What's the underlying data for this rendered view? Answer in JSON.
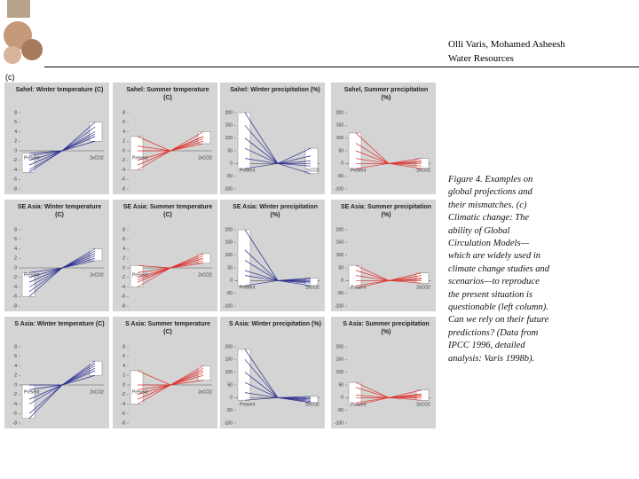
{
  "header": {
    "authors": "Olli Varis, Mohamed Asheesh",
    "subtitle": "Water Resources"
  },
  "label": "(c)",
  "caption": "Figure 4. Examples on global projections and their mismatches. (c) Climatic change: The ability of Global Circulation Models—which are widely used in climate change studies and scenarios—to reproduce the present situation is questionable (left column). Can we rely on their future predictions? (Data from IPCC 1996, detailed analysis: Varis 1998b).",
  "chart_data": [
    {
      "type": "line",
      "title": "Sahel: Winter temperature (C)",
      "categories": [
        "Present",
        null,
        "2xCO2"
      ],
      "ylim": [
        -8,
        8
      ],
      "yticks": [
        -8,
        -6,
        -4,
        -2,
        0,
        2,
        4,
        6,
        8
      ],
      "series": [
        {
          "color": "#2b2f8f",
          "values": [
            -1,
            0,
            6
          ]
        },
        {
          "color": "#2b2f8f",
          "values": [
            -2,
            0,
            3
          ]
        },
        {
          "color": "#2b2f8f",
          "values": [
            -3,
            0,
            4
          ]
        },
        {
          "color": "#2b2f8f",
          "values": [
            -4,
            0,
            2
          ]
        },
        {
          "color": "#2b2f8f",
          "values": [
            -0.5,
            0,
            5
          ]
        },
        {
          "color": "#2b2f8f",
          "values": [
            -4.5,
            0,
            3.5
          ]
        }
      ]
    },
    {
      "type": "line",
      "title": "Sahel: Summer temperature (C)",
      "categories": [
        "Present",
        null,
        "2xCO2"
      ],
      "ylim": [
        -8,
        8
      ],
      "yticks": [
        -8,
        -6,
        -4,
        -2,
        0,
        2,
        4,
        6,
        8
      ],
      "series": [
        {
          "color": "#e0302c",
          "values": [
            -2,
            0,
            4
          ]
        },
        {
          "color": "#e0302c",
          "values": [
            -4,
            0,
            2
          ]
        },
        {
          "color": "#e0302c",
          "values": [
            1,
            0,
            3
          ]
        },
        {
          "color": "#e0302c",
          "values": [
            3,
            0,
            1.5
          ]
        },
        {
          "color": "#e0302c",
          "values": [
            -3,
            0,
            3
          ]
        },
        {
          "color": "#e0302c",
          "values": [
            0,
            0,
            2.5
          ]
        }
      ]
    },
    {
      "type": "line",
      "title": "Sahel: Winter precipitation (%)",
      "categories": [
        "Present",
        null,
        "2xCO2"
      ],
      "ylim": [
        -100,
        200
      ],
      "yticks": [
        -100,
        -50,
        0,
        50,
        100,
        150,
        200
      ],
      "series": [
        {
          "color": "#2b2f8f",
          "values": [
            200,
            0,
            60
          ]
        },
        {
          "color": "#2b2f8f",
          "values": [
            150,
            0,
            30
          ]
        },
        {
          "color": "#2b2f8f",
          "values": [
            100,
            0,
            10
          ]
        },
        {
          "color": "#2b2f8f",
          "values": [
            60,
            0,
            -10
          ]
        },
        {
          "color": "#2b2f8f",
          "values": [
            20,
            0,
            -40
          ]
        },
        {
          "color": "#2b2f8f",
          "values": [
            -20,
            0,
            0
          ]
        }
      ]
    },
    {
      "type": "line",
      "title": "Sahel, Summer precipitation (%)",
      "categories": [
        "Present",
        null,
        "2xCO2"
      ],
      "ylim": [
        -100,
        200
      ],
      "yticks": [
        -100,
        -50,
        0,
        50,
        100,
        150,
        200
      ],
      "series": [
        {
          "color": "#e0302c",
          "values": [
            120,
            0,
            20
          ]
        },
        {
          "color": "#e0302c",
          "values": [
            80,
            0,
            10
          ]
        },
        {
          "color": "#e0302c",
          "values": [
            50,
            0,
            0
          ]
        },
        {
          "color": "#e0302c",
          "values": [
            20,
            0,
            -10
          ]
        },
        {
          "color": "#e0302c",
          "values": [
            0,
            0,
            -20
          ]
        },
        {
          "color": "#e0302c",
          "values": [
            -20,
            0,
            5
          ]
        }
      ]
    },
    {
      "type": "line",
      "title": "SE Asia: Winter temperature (C)",
      "categories": [
        "Present",
        null,
        "2xCO2"
      ],
      "ylim": [
        -8,
        8
      ],
      "yticks": [
        -8,
        -6,
        -4,
        -2,
        0,
        2,
        4,
        6,
        8
      ],
      "series": [
        {
          "color": "#2b2f8f",
          "values": [
            -2,
            0,
            4
          ]
        },
        {
          "color": "#2b2f8f",
          "values": [
            -4,
            0,
            2
          ]
        },
        {
          "color": "#2b2f8f",
          "values": [
            -6,
            0,
            3
          ]
        },
        {
          "color": "#2b2f8f",
          "values": [
            -1,
            0,
            2.5
          ]
        },
        {
          "color": "#2b2f8f",
          "values": [
            -3,
            0,
            3.5
          ]
        },
        {
          "color": "#2b2f8f",
          "values": [
            -5,
            0,
            1.5
          ]
        }
      ]
    },
    {
      "type": "line",
      "title": "SE Asia: Summer temperature (C)",
      "categories": [
        "Present",
        null,
        "2xCO2"
      ],
      "ylim": [
        -8,
        8
      ],
      "yticks": [
        -8,
        -6,
        -4,
        -2,
        0,
        2,
        4,
        6,
        8
      ],
      "series": [
        {
          "color": "#e0302c",
          "values": [
            -1,
            0,
            3
          ]
        },
        {
          "color": "#e0302c",
          "values": [
            -2,
            0,
            2
          ]
        },
        {
          "color": "#e0302c",
          "values": [
            -3,
            0,
            1.5
          ]
        },
        {
          "color": "#e0302c",
          "values": [
            -4,
            0,
            2.5
          ]
        },
        {
          "color": "#e0302c",
          "values": [
            0.5,
            0,
            1
          ]
        },
        {
          "color": "#e0302c",
          "values": [
            -2.5,
            0,
            2
          ]
        }
      ]
    },
    {
      "type": "line",
      "title": "SE Asia: Winter precipitation (%)",
      "categories": [
        "Present",
        null,
        "2xCO2"
      ],
      "ylim": [
        -100,
        200
      ],
      "yticks": [
        -100,
        -50,
        0,
        50,
        100,
        150,
        200
      ],
      "series": [
        {
          "color": "#2b2f8f",
          "values": [
            200,
            0,
            10
          ]
        },
        {
          "color": "#2b2f8f",
          "values": [
            120,
            0,
            -10
          ]
        },
        {
          "color": "#2b2f8f",
          "values": [
            80,
            0,
            0
          ]
        },
        {
          "color": "#2b2f8f",
          "values": [
            40,
            0,
            -20
          ]
        },
        {
          "color": "#2b2f8f",
          "values": [
            20,
            0,
            5
          ]
        },
        {
          "color": "#2b2f8f",
          "values": [
            -20,
            0,
            -5
          ]
        }
      ]
    },
    {
      "type": "line",
      "title": "SE Asia: Summer precipitation (%)",
      "categories": [
        "Present",
        null,
        "2xCO2"
      ],
      "ylim": [
        -100,
        200
      ],
      "yticks": [
        -100,
        -50,
        0,
        50,
        100,
        150,
        200
      ],
      "series": [
        {
          "color": "#e0302c",
          "values": [
            60,
            0,
            30
          ]
        },
        {
          "color": "#e0302c",
          "values": [
            40,
            0,
            10
          ]
        },
        {
          "color": "#e0302c",
          "values": [
            20,
            0,
            0
          ]
        },
        {
          "color": "#e0302c",
          "values": [
            0,
            0,
            -10
          ]
        },
        {
          "color": "#e0302c",
          "values": [
            -20,
            0,
            20
          ]
        },
        {
          "color": "#e0302c",
          "values": [
            -30,
            0,
            5
          ]
        }
      ]
    },
    {
      "type": "line",
      "title": "S Asia: Winter temperature (C)",
      "categories": [
        "Present",
        null,
        "2xCO2"
      ],
      "ylim": [
        -8,
        8
      ],
      "yticks": [
        -8,
        -6,
        -4,
        -2,
        0,
        2,
        4,
        6,
        8
      ],
      "series": [
        {
          "color": "#2b2f8f",
          "values": [
            -1,
            0,
            5
          ]
        },
        {
          "color": "#2b2f8f",
          "values": [
            -3,
            0,
            3
          ]
        },
        {
          "color": "#2b2f8f",
          "values": [
            -4,
            0,
            4
          ]
        },
        {
          "color": "#2b2f8f",
          "values": [
            -6,
            0,
            2
          ]
        },
        {
          "color": "#2b2f8f",
          "values": [
            -7,
            0,
            3.5
          ]
        },
        {
          "color": "#2b2f8f",
          "values": [
            0,
            0,
            4.5
          ]
        }
      ]
    },
    {
      "type": "line",
      "title": "S Asia: Summer temperature (C)",
      "categories": [
        "Present",
        null,
        "2xCO2"
      ],
      "ylim": [
        -8,
        8
      ],
      "yticks": [
        -8,
        -6,
        -4,
        -2,
        0,
        2,
        4,
        6,
        8
      ],
      "series": [
        {
          "color": "#e0302c",
          "values": [
            3,
            0,
            4
          ]
        },
        {
          "color": "#e0302c",
          "values": [
            -1,
            0,
            2
          ]
        },
        {
          "color": "#e0302c",
          "values": [
            -2,
            0,
            3
          ]
        },
        {
          "color": "#e0302c",
          "values": [
            -4,
            0,
            1
          ]
        },
        {
          "color": "#e0302c",
          "values": [
            0,
            0,
            2.5
          ]
        },
        {
          "color": "#e0302c",
          "values": [
            -3,
            0,
            3.5
          ]
        }
      ]
    },
    {
      "type": "line",
      "title": "S Asia: Winter precipitation (%)",
      "categories": [
        "Present",
        null,
        "2xCO2"
      ],
      "ylim": [
        -100,
        200
      ],
      "yticks": [
        -100,
        -50,
        0,
        50,
        100,
        150,
        200
      ],
      "series": [
        {
          "color": "#2b2f8f",
          "values": [
            190,
            0,
            0
          ]
        },
        {
          "color": "#2b2f8f",
          "values": [
            150,
            0,
            -10
          ]
        },
        {
          "color": "#2b2f8f",
          "values": [
            100,
            0,
            -20
          ]
        },
        {
          "color": "#2b2f8f",
          "values": [
            60,
            0,
            -5
          ]
        },
        {
          "color": "#2b2f8f",
          "values": [
            20,
            0,
            5
          ]
        },
        {
          "color": "#2b2f8f",
          "values": [
            -10,
            0,
            -15
          ]
        }
      ]
    },
    {
      "type": "line",
      "title": "S Asia: Summer precipitation (%)",
      "categories": [
        "Present",
        null,
        "2xCO2"
      ],
      "ylim": [
        -100,
        200
      ],
      "yticks": [
        -100,
        -50,
        0,
        50,
        100,
        150,
        200
      ],
      "series": [
        {
          "color": "#e0302c",
          "values": [
            60,
            0,
            30
          ]
        },
        {
          "color": "#e0302c",
          "values": [
            40,
            0,
            10
          ]
        },
        {
          "color": "#e0302c",
          "values": [
            10,
            0,
            0
          ]
        },
        {
          "color": "#e0302c",
          "values": [
            0,
            0,
            -10
          ]
        },
        {
          "color": "#e0302c",
          "values": [
            -20,
            0,
            15
          ]
        },
        {
          "color": "#e0302c",
          "values": [
            -30,
            0,
            5
          ]
        }
      ]
    }
  ]
}
